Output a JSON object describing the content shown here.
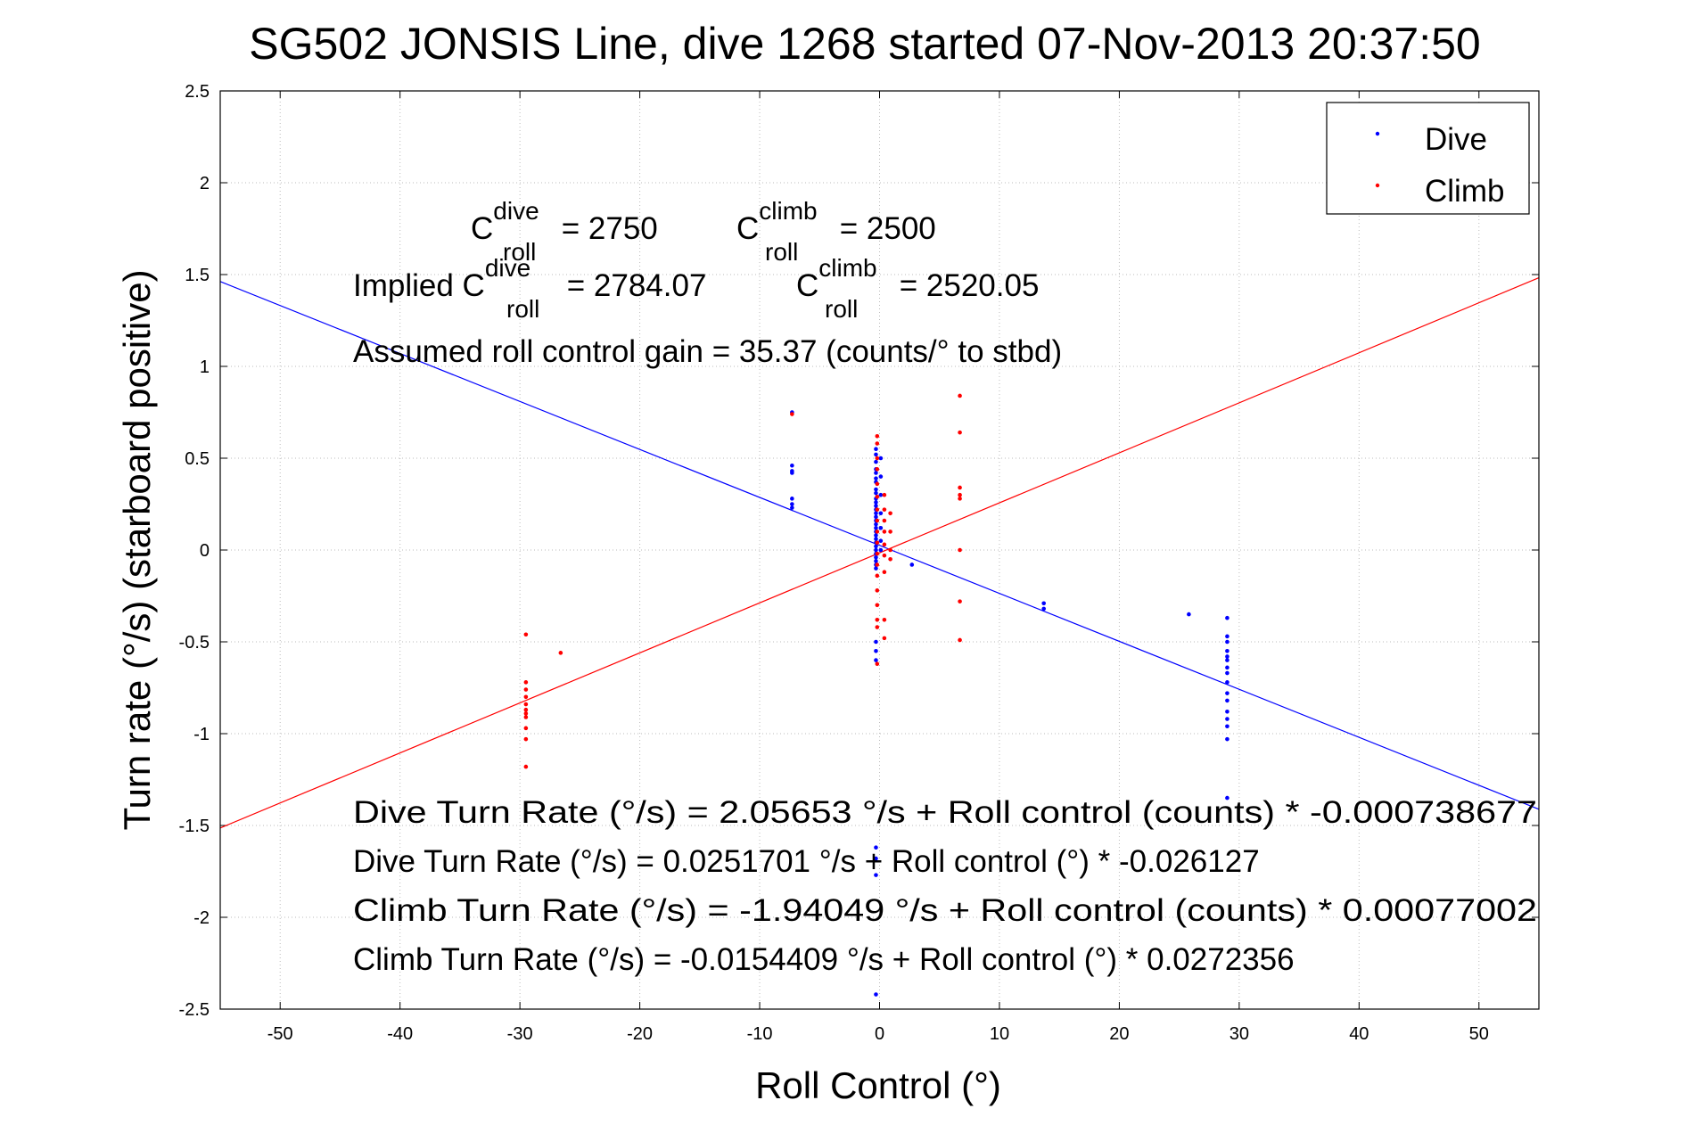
{
  "chart_data": {
    "type": "scatter",
    "title": "SG502 JONSIS Line, dive 1268 started 07-Nov-2013 20:37:50",
    "xlabel": "Roll Control (°)",
    "ylabel": "Turn rate (°/s) (starboard positive)",
    "xlim": [
      -55,
      55
    ],
    "ylim": [
      -2.5,
      2.5
    ],
    "x_ticks": [
      -50,
      -40,
      -30,
      -20,
      -10,
      0,
      10,
      20,
      30,
      40,
      50
    ],
    "y_ticks": [
      -2.5,
      -2,
      -1.5,
      -1,
      -0.5,
      0,
      0.5,
      1,
      1.5,
      2,
      2.5
    ],
    "x_tick_labels": [
      "-50",
      "-40",
      "-30",
      "-20",
      "-10",
      "0",
      "10",
      "20",
      "30",
      "40",
      "50"
    ],
    "y_tick_labels": [
      "-2.5",
      "-2",
      "-1.5",
      "-1",
      "-0.5",
      "0",
      "0.5",
      "1",
      "1.5",
      "2",
      "2.5"
    ],
    "grid": true,
    "legend_position": "top-right",
    "colors": {
      "dive": "#0000ff",
      "climb": "#ff0000"
    },
    "series": [
      {
        "name": "Dive",
        "color": "#0000ff",
        "points": [
          [
            -7.3,
            0.75
          ],
          [
            -7.3,
            0.46
          ],
          [
            -7.3,
            0.43
          ],
          [
            -7.3,
            0.42
          ],
          [
            -7.3,
            0.28
          ],
          [
            -7.3,
            0.25
          ],
          [
            -7.3,
            0.23
          ],
          [
            -0.3,
            0.55
          ],
          [
            -0.3,
            0.52
          ],
          [
            -0.3,
            0.48
          ],
          [
            -0.3,
            0.44
          ],
          [
            -0.3,
            0.42
          ],
          [
            -0.3,
            0.39
          ],
          [
            -0.3,
            0.37
          ],
          [
            -0.3,
            0.33
          ],
          [
            -0.3,
            0.31
          ],
          [
            -0.3,
            0.28
          ],
          [
            -0.3,
            0.26
          ],
          [
            -0.3,
            0.24
          ],
          [
            -0.3,
            0.22
          ],
          [
            -0.3,
            0.2
          ],
          [
            -0.3,
            0.18
          ],
          [
            -0.3,
            0.16
          ],
          [
            -0.3,
            0.14
          ],
          [
            -0.3,
            0.12
          ],
          [
            -0.3,
            0.1
          ],
          [
            -0.3,
            0.08
          ],
          [
            -0.3,
            0.06
          ],
          [
            -0.3,
            0.04
          ],
          [
            -0.3,
            0.02
          ],
          [
            -0.3,
            0.0
          ],
          [
            -0.3,
            -0.02
          ],
          [
            -0.3,
            -0.04
          ],
          [
            -0.3,
            -0.06
          ],
          [
            -0.3,
            -0.08
          ],
          [
            -0.3,
            -0.1
          ],
          [
            -0.3,
            -0.5
          ],
          [
            -0.3,
            -0.55
          ],
          [
            -0.3,
            -0.6
          ],
          [
            -0.3,
            -1.62
          ],
          [
            -0.3,
            -1.68
          ],
          [
            -0.3,
            -1.77
          ],
          [
            -0.3,
            -2.42
          ],
          [
            0.1,
            0.5
          ],
          [
            0.1,
            0.4
          ],
          [
            0.1,
            0.3
          ],
          [
            0.1,
            0.2
          ],
          [
            0.1,
            0.12
          ],
          [
            0.1,
            0.05
          ],
          [
            0.1,
            0.0
          ],
          [
            2.7,
            -0.08
          ],
          [
            13.7,
            -0.29
          ],
          [
            13.7,
            -0.32
          ],
          [
            25.8,
            -0.35
          ],
          [
            29,
            -0.37
          ],
          [
            29,
            -0.47
          ],
          [
            29,
            -0.5
          ],
          [
            29,
            -0.55
          ],
          [
            29,
            -0.58
          ],
          [
            29,
            -0.6
          ],
          [
            29,
            -0.64
          ],
          [
            29,
            -0.67
          ],
          [
            29,
            -0.72
          ],
          [
            29,
            -0.78
          ],
          [
            29,
            -0.82
          ],
          [
            29,
            -0.88
          ],
          [
            29,
            -0.92
          ],
          [
            29,
            -0.96
          ],
          [
            29,
            -1.03
          ],
          [
            29,
            -1.35
          ]
        ]
      },
      {
        "name": "Climb",
        "color": "#ff0000",
        "points": [
          [
            -29.5,
            -0.46
          ],
          [
            -29.5,
            -0.72
          ],
          [
            -29.5,
            -0.76
          ],
          [
            -29.5,
            -0.8
          ],
          [
            -29.5,
            -0.84
          ],
          [
            -29.5,
            -0.87
          ],
          [
            -29.5,
            -0.89
          ],
          [
            -29.5,
            -0.91
          ],
          [
            -29.5,
            -0.97
          ],
          [
            -29.5,
            -1.03
          ],
          [
            -29.5,
            -1.18
          ],
          [
            -26.6,
            -0.56
          ],
          [
            -7.3,
            0.74
          ],
          [
            -0.2,
            0.62
          ],
          [
            -0.2,
            0.58
          ],
          [
            -0.2,
            0.5
          ],
          [
            -0.2,
            0.44
          ],
          [
            -0.2,
            0.36
          ],
          [
            -0.2,
            0.29
          ],
          [
            -0.2,
            0.22
          ],
          [
            -0.2,
            0.16
          ],
          [
            -0.2,
            0.1
          ],
          [
            -0.2,
            0.04
          ],
          [
            -0.2,
            -0.02
          ],
          [
            -0.2,
            -0.08
          ],
          [
            -0.2,
            -0.14
          ],
          [
            -0.2,
            -0.22
          ],
          [
            -0.2,
            -0.3
          ],
          [
            -0.2,
            -0.38
          ],
          [
            -0.2,
            -0.42
          ],
          [
            -0.2,
            -0.62
          ],
          [
            0.4,
            0.3
          ],
          [
            0.4,
            0.22
          ],
          [
            0.4,
            0.16
          ],
          [
            0.4,
            0.1
          ],
          [
            0.4,
            0.03
          ],
          [
            0.4,
            -0.03
          ],
          [
            0.4,
            -0.12
          ],
          [
            0.4,
            -0.38
          ],
          [
            0.4,
            -0.48
          ],
          [
            0.9,
            0.2
          ],
          [
            0.9,
            0.1
          ],
          [
            0.9,
            0.0
          ],
          [
            0.9,
            -0.05
          ],
          [
            6.7,
            0.84
          ],
          [
            6.7,
            0.64
          ],
          [
            6.7,
            0.34
          ],
          [
            6.7,
            0.3
          ],
          [
            6.7,
            0.28
          ],
          [
            6.7,
            0.0
          ],
          [
            6.7,
            -0.28
          ],
          [
            6.7,
            -0.49
          ]
        ]
      }
    ],
    "fit_lines": [
      {
        "name": "Dive fit",
        "color": "#0000ff",
        "intercept": 0.0251701,
        "slope": -0.026127
      },
      {
        "name": "Climb fit",
        "color": "#ff0000",
        "intercept": -0.0154409,
        "slope": 0.0272356
      }
    ],
    "annotations": {
      "c_dive_label": "C",
      "c_dive_sup": "dive",
      "c_dive_sub": "roll",
      "c_dive_value": " = 2750",
      "c_climb_label": "C",
      "c_climb_sup": "climb",
      "c_climb_sub": "roll",
      "c_climb_value": " = 2500",
      "implied_prefix": "Implied C",
      "implied_dive_sup": "dive",
      "implied_dive_sub": "roll",
      "implied_dive_value": " = 2784.07",
      "implied_climb_label": "C",
      "implied_climb_sup": "climb",
      "implied_climb_sub": "roll",
      "implied_climb_value": " = 2520.05",
      "gain": "Assumed roll control gain = 35.37 (counts/° to stbd)",
      "eq1": "Dive Turn Rate (°/s) = 2.05653 °/s + Roll control (counts) * -0.000738677",
      "eq2": "Dive Turn Rate (°/s) = 0.0251701 °/s + Roll control (°) * -0.026127",
      "eq3": "Climb Turn Rate (°/s) = -1.94049 °/s + Roll control (counts) * 0.00077002",
      "eq4": "Climb Turn Rate (°/s) = -0.0154409 °/s + Roll control (°) * 0.0272356"
    }
  }
}
